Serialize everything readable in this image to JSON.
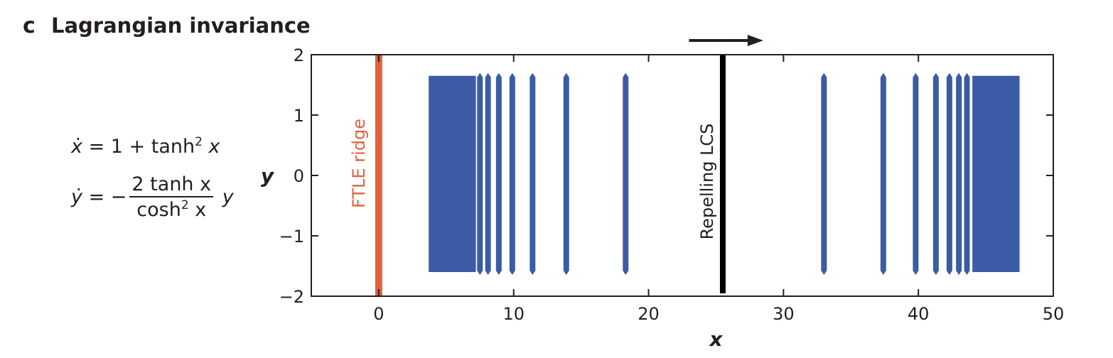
{
  "panel": {
    "letter": "c",
    "title": "Lagrangian invariance"
  },
  "equations": {
    "xdot_lhs": "x",
    "xdot_rhs_1": "= 1 + tanh",
    "xdot_rhs_exp": "2",
    "xdot_rhs_var": "x",
    "ydot_lhs": "y",
    "ydot_eq": "= −",
    "ydot_num": "2 tanh x",
    "ydot_den_1": "cosh",
    "ydot_den_exp": "2",
    "ydot_den_2": " x",
    "ydot_var": "y"
  },
  "colors": {
    "ftle": "#e0623d",
    "lcs": "#000000",
    "particles": "#3b5ca5",
    "axis": "#231f20",
    "arrow": "#231f20"
  },
  "chart_data": {
    "type": "scatter",
    "xlabel": "x",
    "ylabel": "y",
    "xlim": [
      -5,
      50
    ],
    "ylim": [
      -2,
      2
    ],
    "xticks": [
      0,
      10,
      20,
      30,
      40,
      50
    ],
    "yticks": [
      2,
      1,
      0,
      -1,
      -2
    ],
    "xtick_labels": [
      "0",
      "10",
      "20",
      "30",
      "40",
      "50"
    ],
    "ytick_labels": [
      "2",
      "1",
      "0",
      "−1",
      "−2"
    ],
    "grid": false,
    "ftle_ridge": {
      "x": 0,
      "label": "FTLE ridge"
    },
    "repelling_lcs": {
      "x": 25.5,
      "label": "Repelling LCS"
    },
    "flow_arrow": {
      "from_x": 23,
      "to_x": 28.5,
      "direction": "right"
    },
    "particle_bands": {
      "y_range": [
        -1.6,
        1.65
      ],
      "dense_blocks": [
        [
          3.7,
          7.2
        ],
        [
          44.0,
          47.5
        ]
      ],
      "lines_x": [
        7.5,
        8.1,
        8.9,
        9.9,
        11.4,
        13.9,
        18.3,
        33.0,
        37.4,
        39.8,
        41.3,
        42.3,
        43.0,
        43.6
      ]
    }
  }
}
